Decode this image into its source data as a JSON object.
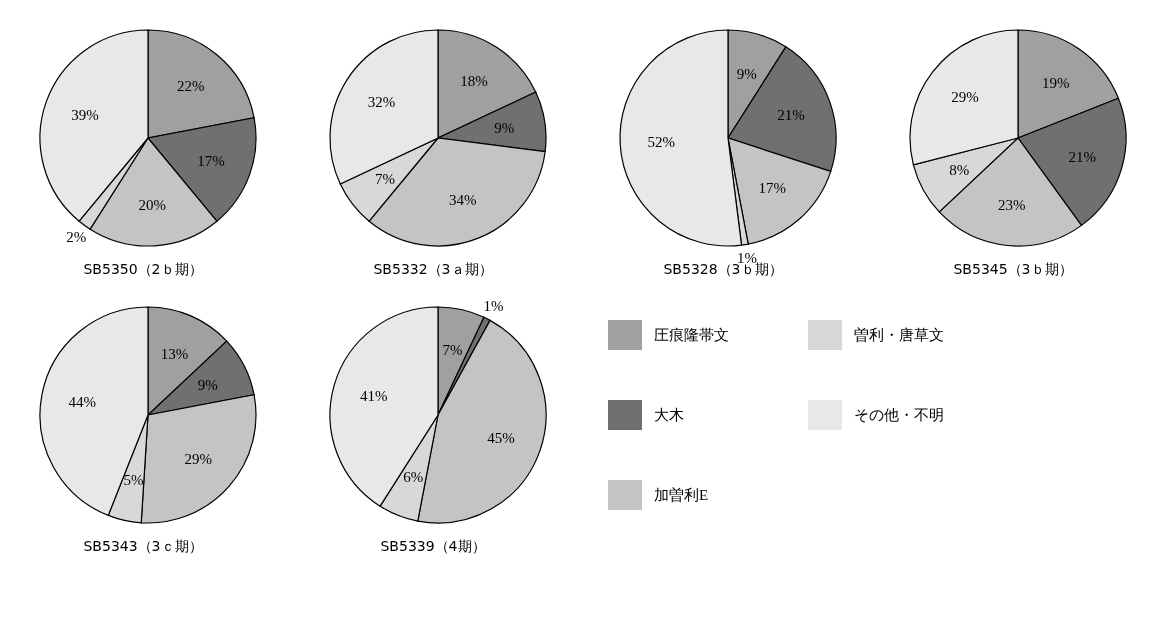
{
  "chart_data": [
    {
      "type": "pie",
      "title": "SB5350（2ｂ期）",
      "values": [
        22,
        17,
        20,
        2,
        39
      ],
      "value_labels": [
        "22%",
        "17%",
        "20%",
        "2%",
        "39%"
      ],
      "colors": [
        "#a0a0a0",
        "#707070",
        "#c4c4c4",
        "#d8d8d8",
        "#e8e8e8"
      ],
      "legend": false
    },
    {
      "type": "pie",
      "title": "SB5332（3ａ期）",
      "values": [
        18,
        9,
        34,
        7,
        32
      ],
      "value_labels": [
        "18%",
        "9%",
        "34%",
        "7%",
        "32%"
      ],
      "colors": [
        "#a0a0a0",
        "#707070",
        "#c4c4c4",
        "#d8d8d8",
        "#e8e8e8"
      ],
      "legend": false
    },
    {
      "type": "pie",
      "title": "SB5328（3ｂ期）",
      "values": [
        9,
        21,
        17,
        1,
        52
      ],
      "value_labels": [
        "9%",
        "21%",
        "17%",
        "1%",
        "52%"
      ],
      "colors": [
        "#a0a0a0",
        "#707070",
        "#c4c4c4",
        "#d8d8d8",
        "#e8e8e8"
      ],
      "legend": false
    },
    {
      "type": "pie",
      "title": "SB5345（3ｂ期）",
      "values": [
        19,
        21,
        23,
        8,
        29
      ],
      "value_labels": [
        "19%",
        "21%",
        "23%",
        "8%",
        "29%"
      ],
      "colors": [
        "#a0a0a0",
        "#707070",
        "#c4c4c4",
        "#d8d8d8",
        "#e8e8e8"
      ],
      "legend": false
    },
    {
      "type": "pie",
      "title": "SB5343（3ｃ期）",
      "values": [
        13,
        9,
        29,
        5,
        44
      ],
      "value_labels": [
        "13%",
        "9%",
        "29%",
        "5%",
        "44%"
      ],
      "colors": [
        "#a0a0a0",
        "#707070",
        "#c4c4c4",
        "#d8d8d8",
        "#e8e8e8"
      ],
      "legend": false
    },
    {
      "type": "pie",
      "title": "SB5339（4期）",
      "categories": [
        "圧痕隆帯文",
        "大木",
        "加曽利E",
        "曽利・唐草文",
        "その他・不明"
      ],
      "values": [
        7,
        1,
        45,
        6,
        41
      ],
      "value_labels": [
        "7%",
        "1%",
        "45%",
        "6%",
        "41%"
      ],
      "colors": [
        "#a0a0a0",
        "#707070",
        "#c4c4c4",
        "#d8d8d8",
        "#e8e8e8"
      ],
      "legend": "right"
    }
  ]
}
